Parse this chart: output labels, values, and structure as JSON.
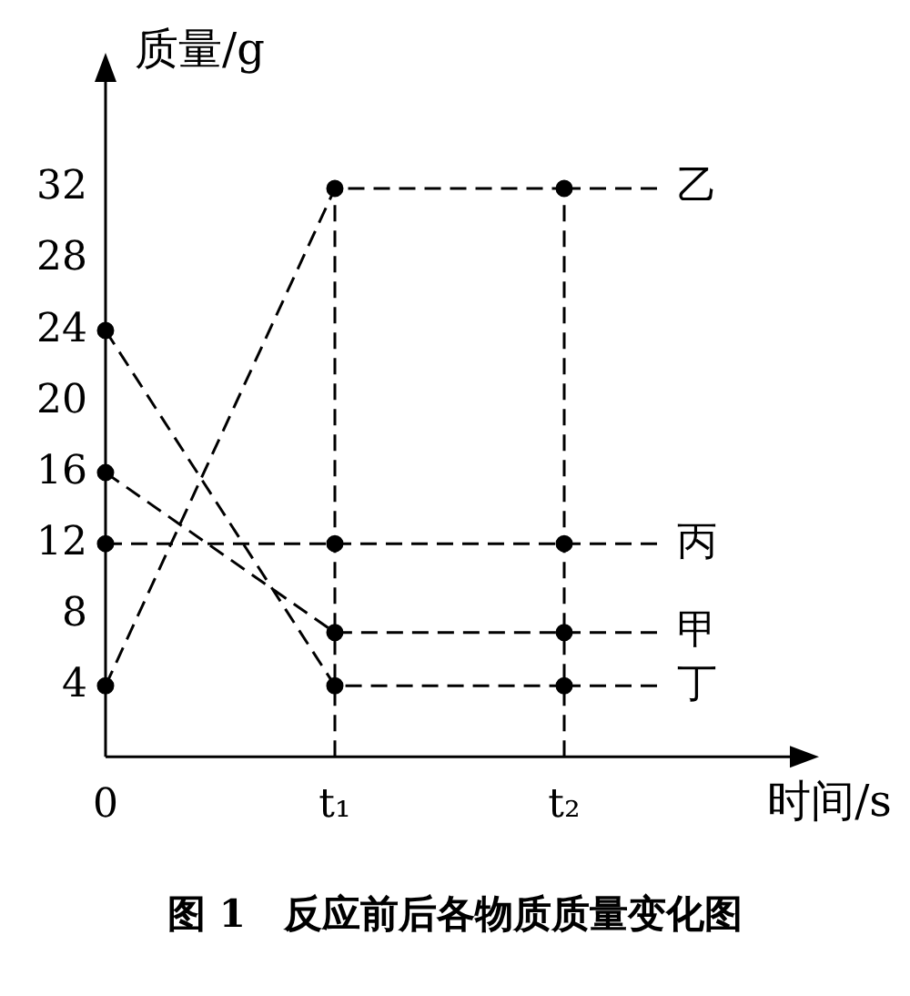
{
  "chart_data": {
    "type": "line",
    "title": "图 1　反应前后各物质质量变化图",
    "xlabel": "时间/s",
    "ylabel": "质量/g",
    "categories": [
      "0",
      "t₁",
      "t₂"
    ],
    "series": [
      {
        "name": "乙",
        "color": "#000000",
        "values": [
          4,
          32,
          32
        ]
      },
      {
        "name": "丙",
        "color": "#000000",
        "values": [
          12,
          12,
          12
        ]
      },
      {
        "name": "甲",
        "color": "#000000",
        "values": [
          16,
          7,
          7
        ]
      },
      {
        "name": "丁",
        "color": "#000000",
        "values": [
          24,
          4,
          4
        ]
      }
    ],
    "ylim": [
      0,
      38
    ],
    "yticks": [
      4,
      8,
      12,
      16,
      20,
      24,
      28,
      32
    ],
    "ref_lines": [
      {
        "axis": "x",
        "value": "t₁",
        "label": null,
        "line_style": "dashed"
      },
      {
        "axis": "x",
        "value": "t₂",
        "label": null,
        "line_style": "dashed"
      }
    ],
    "grid": false,
    "legend": "right",
    "marker": "circle",
    "line_style": "dashed"
  }
}
